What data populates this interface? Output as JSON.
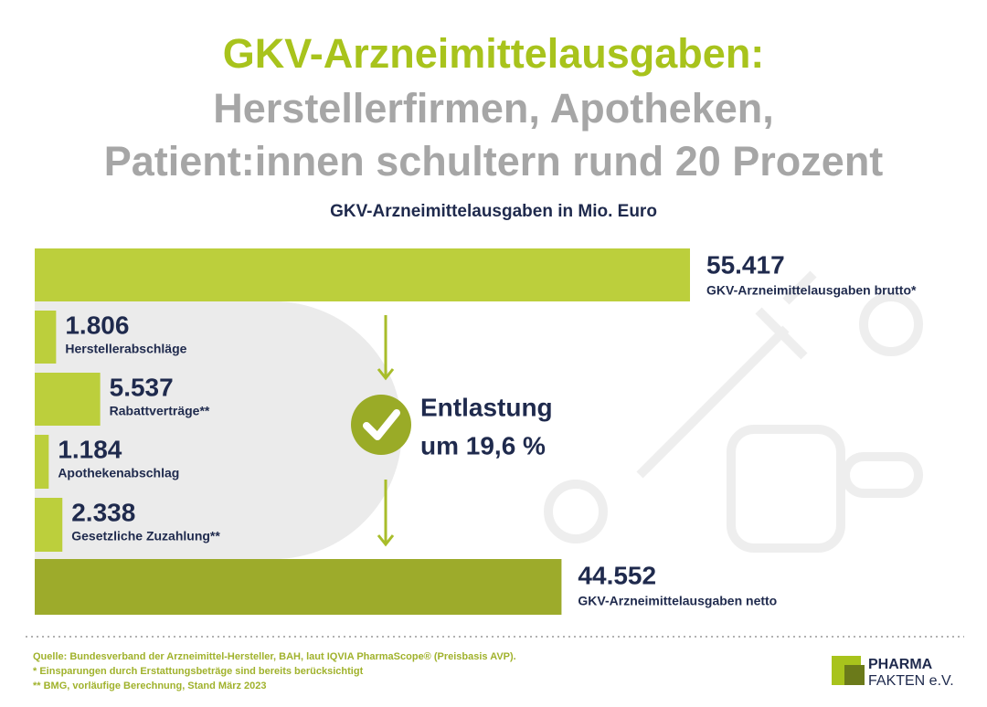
{
  "chart_data": {
    "type": "bar",
    "orientation": "horizontal",
    "title": [
      "GKV-Arzneimittelausgaben:",
      "Herstellerfirmen, Apotheken,",
      "Patient:innen schultern rund 20 Prozent"
    ],
    "subtitle": "GKV-Arzneimittelausgaben in Mio. Euro",
    "categories": [
      "GKV-Arzneimittelausgaben brutto*",
      "Herstellerabschläge",
      "Rabattverträge**",
      "Apothekenabschlag",
      "Gesetzliche Zuzahlung**",
      "GKV-Arzneimittelausgaben netto"
    ],
    "values": [
      55417,
      1806,
      5537,
      1184,
      2338,
      44552
    ],
    "value_labels": [
      "55.417",
      "1.806",
      "5.537",
      "1.184",
      "2.338",
      "44.552"
    ],
    "colors": [
      "#bccf3c",
      "#bccf3c",
      "#bccf3c",
      "#bccf3c",
      "#bccf3c",
      "#9dab2b"
    ],
    "annotation": [
      "Entlastung",
      "um 19,6 %"
    ],
    "source": [
      "Quelle: Bundesverband der Arzneimittel-Hersteller, BAH, laut IQVIA PharmaScope® (Preisbasis AVP).",
      "* Einsparungen durch Erstattungsbeträge sind bereits berücksichtigt",
      "** BMG, vorläufige Berechnung, Stand März 2023"
    ],
    "logo": [
      "PHARMA",
      "FAKTEN e.V."
    ]
  }
}
